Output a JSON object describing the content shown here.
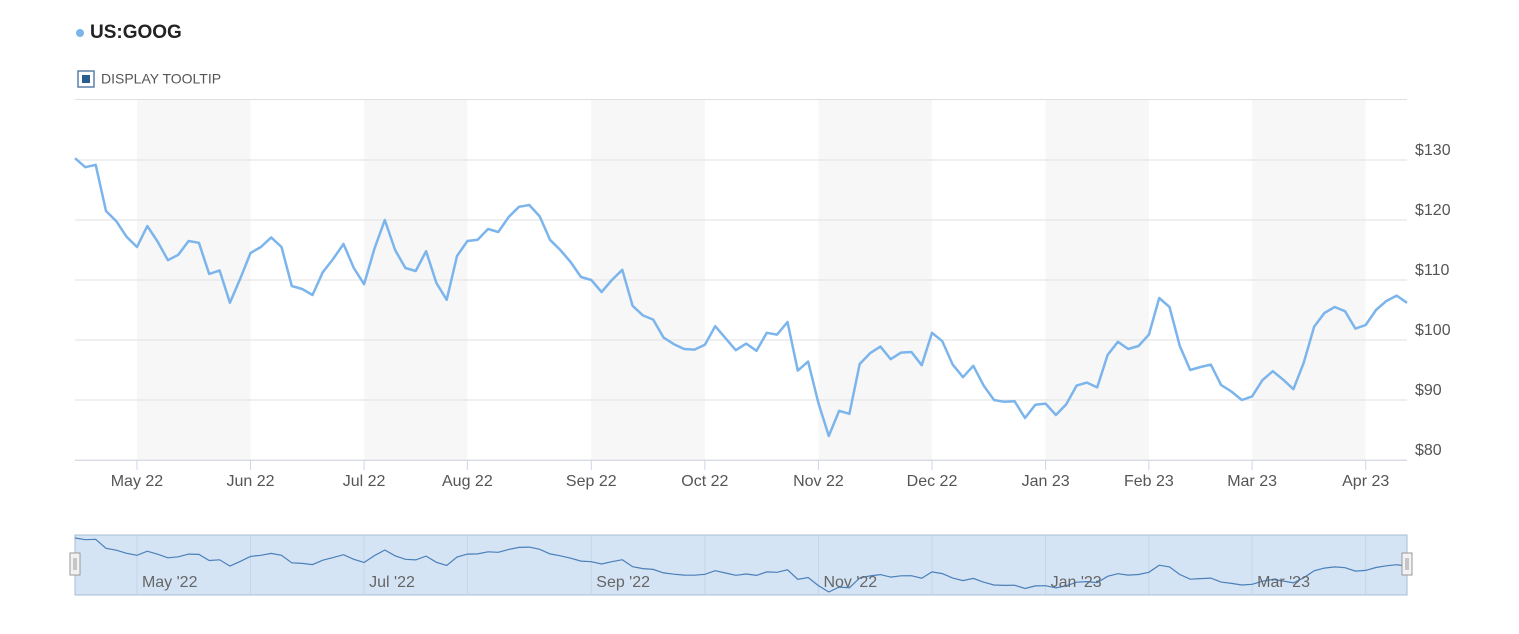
{
  "controls": {
    "tooltip_toggle": "DISPLAY TOOLTIP"
  },
  "chart_data": {
    "type": "line",
    "categories": [
      null,
      null,
      null,
      null,
      null,
      null,
      "May 22",
      null,
      null,
      null,
      null,
      null,
      null,
      null,
      null,
      null,
      null,
      "Jun 22",
      null,
      null,
      null,
      null,
      null,
      null,
      null,
      null,
      null,
      null,
      "Jul 22",
      null,
      null,
      null,
      null,
      null,
      null,
      null,
      null,
      null,
      "Aug 22",
      null,
      null,
      null,
      null,
      null,
      null,
      null,
      null,
      null,
      null,
      null,
      "Sep 22",
      null,
      null,
      null,
      null,
      null,
      null,
      null,
      null,
      null,
      null,
      "Oct 22",
      null,
      null,
      null,
      null,
      null,
      null,
      null,
      null,
      null,
      null,
      "Nov 22",
      null,
      null,
      null,
      null,
      null,
      null,
      null,
      null,
      null,
      null,
      "Dec 22",
      null,
      null,
      null,
      null,
      null,
      null,
      null,
      null,
      null,
      null,
      "Jan 23",
      null,
      null,
      null,
      null,
      null,
      null,
      null,
      null,
      null,
      "Feb 23",
      null,
      null,
      null,
      null,
      null,
      null,
      null,
      null,
      null,
      "Mar 23",
      null,
      null,
      null,
      null,
      null,
      null,
      null,
      null,
      null,
      null,
      "Apr 23",
      null,
      null,
      null,
      null
    ],
    "series": [
      {
        "name": "US:GOOG",
        "color": "#7cb5ec",
        "values": [
          130.3,
          128.8,
          129.2,
          121.5,
          119.8,
          117.2,
          115.5,
          119,
          116.4,
          113.3,
          114.2,
          116.5,
          116.2,
          111,
          111.6,
          106.2,
          110.2,
          114.5,
          115.5,
          117.1,
          115.5,
          109,
          108.5,
          107.5,
          111.3,
          113.5,
          116,
          112,
          109.3,
          115.2,
          120,
          115,
          112,
          111.5,
          114.8,
          109.5,
          106.7,
          114,
          116.5,
          116.7,
          118.5,
          118,
          120.5,
          122.2,
          122.5,
          120.6,
          116.7,
          115,
          113,
          110.5,
          110,
          108,
          110,
          111.7,
          105.7,
          104.1,
          103.4,
          100.4,
          99.3,
          98.5,
          98.4,
          99.2,
          102.3,
          100.3,
          98.3,
          99.4,
          98.2,
          101.2,
          100.9,
          103,
          94.9,
          96.4,
          89.5,
          84,
          88.2,
          87.7,
          96,
          97.8,
          98.9,
          96.8,
          97.9,
          98,
          95.8,
          101.2,
          99.8,
          95.9,
          93.8,
          95.7,
          92.4,
          90,
          89.7,
          89.8,
          87,
          89.2,
          89.4,
          87.5,
          89.3,
          92.4,
          92.9,
          92.1,
          97.5,
          99.7,
          98.5,
          99,
          100.9,
          107,
          105.5,
          99,
          95,
          95.5,
          95.9,
          92.5,
          91.4,
          90,
          90.6,
          93.3,
          94.8,
          93.4,
          91.8,
          96.2,
          102.2,
          104.5,
          105.5,
          104.8,
          101.9,
          102.5,
          105,
          106.5,
          107.4,
          106.2
        ]
      }
    ],
    "ylim": [
      80,
      140
    ],
    "yticks": [
      {
        "value": 80,
        "label": "$80"
      },
      {
        "value": 90,
        "label": "$90"
      },
      {
        "value": 100,
        "label": "$100"
      },
      {
        "value": 110,
        "label": "$110"
      },
      {
        "value": 120,
        "label": "$120"
      },
      {
        "value": 130,
        "label": "$130"
      }
    ],
    "grid": true,
    "navigator_labels": [
      "May '22",
      "Jul '22",
      "Sep '22",
      "Nov '22",
      "Jan '23",
      "Mar '23"
    ]
  }
}
